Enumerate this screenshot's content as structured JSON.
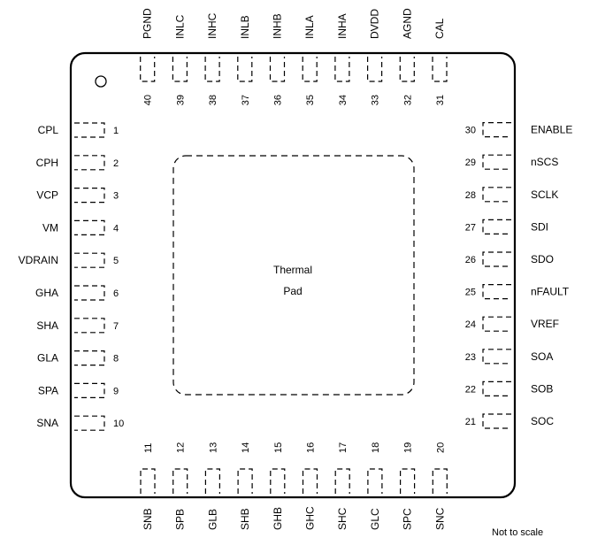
{
  "package": {
    "thermal_pad": {
      "line1": "Thermal",
      "line2": "Pad"
    },
    "note": "Not to scale",
    "pins": {
      "left": [
        {
          "num": "1",
          "name": "CPL"
        },
        {
          "num": "2",
          "name": "CPH"
        },
        {
          "num": "3",
          "name": "VCP"
        },
        {
          "num": "4",
          "name": "VM"
        },
        {
          "num": "5",
          "name": "VDRAIN"
        },
        {
          "num": "6",
          "name": "GHA"
        },
        {
          "num": "7",
          "name": "SHA"
        },
        {
          "num": "8",
          "name": "GLA"
        },
        {
          "num": "9",
          "name": "SPA"
        },
        {
          "num": "10",
          "name": "SNA"
        }
      ],
      "bottom": [
        {
          "num": "11",
          "name": "SNB"
        },
        {
          "num": "12",
          "name": "SPB"
        },
        {
          "num": "13",
          "name": "GLB"
        },
        {
          "num": "14",
          "name": "SHB"
        },
        {
          "num": "15",
          "name": "GHB"
        },
        {
          "num": "16",
          "name": "GHC"
        },
        {
          "num": "17",
          "name": "SHC"
        },
        {
          "num": "18",
          "name": "GLC"
        },
        {
          "num": "19",
          "name": "SPC"
        },
        {
          "num": "20",
          "name": "SNC"
        }
      ],
      "right": [
        {
          "num": "21",
          "name": "SOC"
        },
        {
          "num": "22",
          "name": "SOB"
        },
        {
          "num": "23",
          "name": "SOA"
        },
        {
          "num": "24",
          "name": "VREF"
        },
        {
          "num": "25",
          "name": "nFAULT"
        },
        {
          "num": "26",
          "name": "SDO"
        },
        {
          "num": "27",
          "name": "SDI"
        },
        {
          "num": "28",
          "name": "SCLK"
        },
        {
          "num": "29",
          "name": "nSCS"
        },
        {
          "num": "30",
          "name": "ENABLE"
        }
      ],
      "top": [
        {
          "num": "31",
          "name": "CAL"
        },
        {
          "num": "32",
          "name": "AGND"
        },
        {
          "num": "33",
          "name": "DVDD"
        },
        {
          "num": "34",
          "name": "INHA"
        },
        {
          "num": "35",
          "name": "INLA"
        },
        {
          "num": "36",
          "name": "INHB"
        },
        {
          "num": "37",
          "name": "INLB"
        },
        {
          "num": "38",
          "name": "INHC"
        },
        {
          "num": "39",
          "name": "INLC"
        },
        {
          "num": "40",
          "name": "PGND"
        }
      ]
    }
  }
}
